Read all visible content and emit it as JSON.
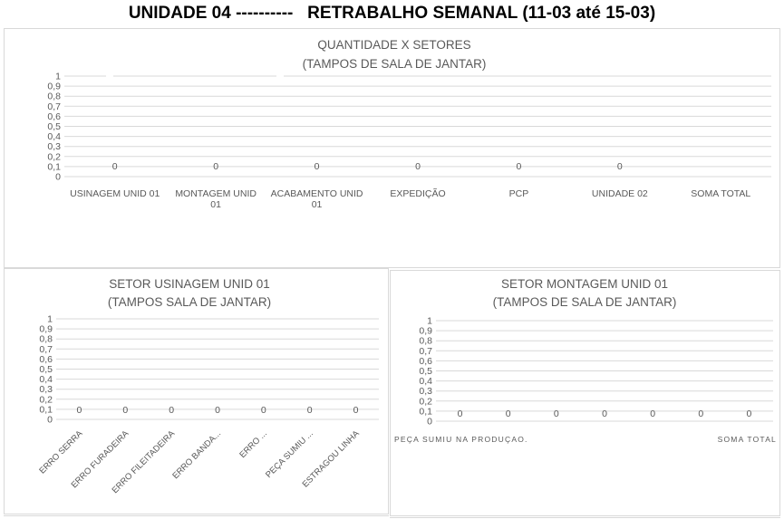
{
  "header": {
    "title": "UNIDADE 04 ----------   RETRABALHO SEMANAL (11-03 até 15-03)"
  },
  "colors": {
    "grid": "#d9d9d9",
    "text": "#595959",
    "title": "#000000",
    "border": "#d9d9d9"
  },
  "chart_data": [
    {
      "type": "bar",
      "title": "QUANTIDADE X SETORES",
      "subtitle": "(TAMPOS DE SALA DE JANTAR)",
      "categories": [
        "USINAGEM  UNID 01",
        "MONTAGEM UNID 01",
        "ACABAMENTO  UNID 01",
        "EXPEDIÇÃO",
        "PCP",
        "UNIDADE 02",
        "SOMA TOTAL"
      ],
      "values": [
        0,
        0,
        0,
        0,
        0,
        0,
        null
      ],
      "data_labels": [
        "0",
        "0",
        "0",
        "0",
        "0",
        "0",
        ""
      ],
      "y_ticks": [
        "0",
        "0,1",
        "0,2",
        "0,3",
        "0,4",
        "0,5",
        "0,6",
        "0,7",
        "0,8",
        "0,9",
        "1"
      ],
      "ylim": [
        0,
        1
      ],
      "grid": true,
      "legend": "none"
    },
    {
      "type": "bar",
      "title": "SETOR USINAGEM  UNID 01",
      "subtitle": "(TAMPOS SALA DE JANTAR)",
      "categories": [
        "ERRO SERRA",
        "ERRO FURADEIRA",
        "ERRO FILEITADEIRA",
        "ERRO BANDA...",
        "ERRO ...",
        "PEÇA SUMIU ...",
        "ESTRAGOU LINHA"
      ],
      "values": [
        0,
        0,
        0,
        0,
        0,
        0,
        0
      ],
      "data_labels": [
        "0",
        "0",
        "0",
        "0",
        "0",
        "0",
        "0"
      ],
      "y_ticks": [
        "0",
        "0,1",
        "0,2",
        "0,3",
        "0,4",
        "0,5",
        "0,6",
        "0,7",
        "0,8",
        "0,9",
        "1"
      ],
      "ylim": [
        0,
        1
      ],
      "grid": true,
      "legend": "none"
    },
    {
      "type": "bar",
      "title": "SETOR  MONTAGEM UNID 01",
      "subtitle": "(TAMPOS DE SALA DE JANTAR)",
      "categories": [
        "PEÇA SUMIU NA PRODUÇAO.",
        "",
        "",
        "",
        "",
        "",
        "SOMA TOTAL"
      ],
      "values": [
        0,
        0,
        0,
        0,
        0,
        0,
        0
      ],
      "data_labels": [
        "0",
        "0",
        "0",
        "0",
        "0",
        "0",
        "0"
      ],
      "y_ticks": [
        "0",
        "0,1",
        "0,2",
        "0,3",
        "0,4",
        "0,5",
        "0,6",
        "0,7",
        "0,8",
        "0,9",
        "1"
      ],
      "ylim": [
        0,
        1
      ],
      "grid": true,
      "legend": "none"
    }
  ]
}
